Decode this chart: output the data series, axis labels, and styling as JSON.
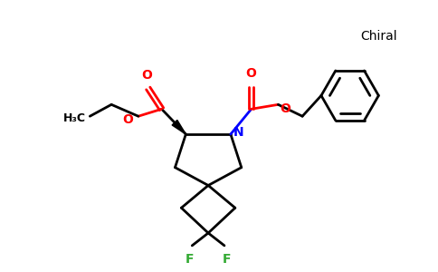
{
  "background_color": "#ffffff",
  "line_color": "#000000",
  "nitrogen_color": "#0000ff",
  "oxygen_color": "#ff0000",
  "fluorine_color": "#33aa33",
  "lw": 2.0,
  "chiral_text": "Chiral",
  "N_label": "N",
  "F_label": "F",
  "O_label": "O",
  "H3C_label": "H₃C"
}
